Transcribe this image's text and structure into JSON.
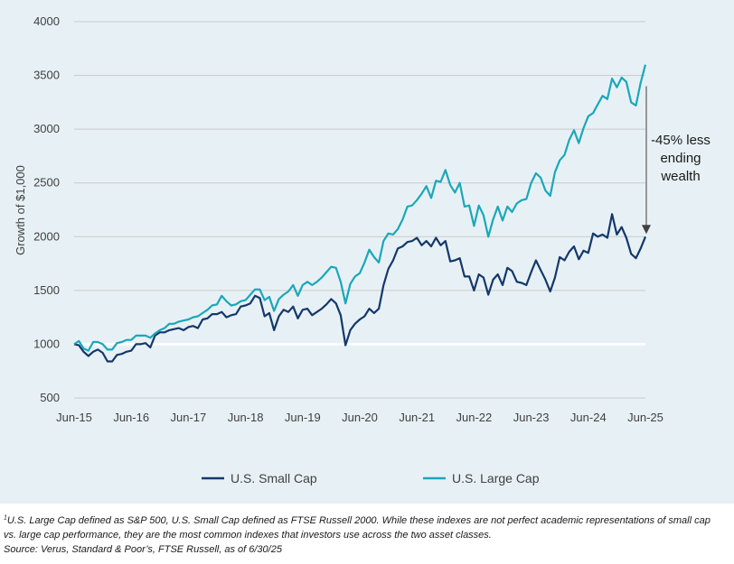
{
  "chart_data": {
    "type": "line",
    "title": "",
    "xlabel": "",
    "ylabel": "Growth of $1,000",
    "ylim": [
      500,
      4000
    ],
    "yticks": [
      500,
      1000,
      1500,
      2000,
      2500,
      3000,
      3500,
      4000
    ],
    "xlim": [
      "2015-06",
      "2025-06"
    ],
    "xticks": [
      "Jun-15",
      "Jun-16",
      "Jun-17",
      "Jun-18",
      "Jun-19",
      "Jun-20",
      "Jun-21",
      "Jun-22",
      "Jun-23",
      "Jun-24",
      "Jun-25"
    ],
    "grid": "horizontal",
    "legend_position": "bottom",
    "series": [
      {
        "name": "U.S. Small Cap",
        "color": "#14386b",
        "points": [
          [
            "2015-06",
            1000
          ],
          [
            "2015-07",
            990
          ],
          [
            "2015-08",
            930
          ],
          [
            "2015-09",
            890
          ],
          [
            "2015-10",
            930
          ],
          [
            "2015-11",
            950
          ],
          [
            "2015-12",
            920
          ],
          [
            "2016-01",
            840
          ],
          [
            "2016-02",
            840
          ],
          [
            "2016-03",
            900
          ],
          [
            "2016-04",
            910
          ],
          [
            "2016-05",
            930
          ],
          [
            "2016-06",
            940
          ],
          [
            "2016-07",
            1000
          ],
          [
            "2016-08",
            1000
          ],
          [
            "2016-09",
            1010
          ],
          [
            "2016-10",
            970
          ],
          [
            "2016-11",
            1080
          ],
          [
            "2016-12",
            1110
          ],
          [
            "2017-01",
            1110
          ],
          [
            "2017-02",
            1130
          ],
          [
            "2017-03",
            1140
          ],
          [
            "2017-04",
            1150
          ],
          [
            "2017-05",
            1130
          ],
          [
            "2017-06",
            1160
          ],
          [
            "2017-07",
            1170
          ],
          [
            "2017-08",
            1150
          ],
          [
            "2017-09",
            1230
          ],
          [
            "2017-10",
            1240
          ],
          [
            "2017-11",
            1280
          ],
          [
            "2017-12",
            1280
          ],
          [
            "2018-01",
            1300
          ],
          [
            "2018-02",
            1250
          ],
          [
            "2018-03",
            1270
          ],
          [
            "2018-04",
            1280
          ],
          [
            "2018-05",
            1350
          ],
          [
            "2018-06",
            1360
          ],
          [
            "2018-07",
            1380
          ],
          [
            "2018-08",
            1450
          ],
          [
            "2018-09",
            1430
          ],
          [
            "2018-10",
            1260
          ],
          [
            "2018-11",
            1290
          ],
          [
            "2018-12",
            1130
          ],
          [
            "2019-01",
            1260
          ],
          [
            "2019-02",
            1320
          ],
          [
            "2019-03",
            1300
          ],
          [
            "2019-04",
            1350
          ],
          [
            "2019-05",
            1240
          ],
          [
            "2019-06",
            1320
          ],
          [
            "2019-07",
            1330
          ],
          [
            "2019-08",
            1270
          ],
          [
            "2019-09",
            1300
          ],
          [
            "2019-10",
            1330
          ],
          [
            "2019-11",
            1370
          ],
          [
            "2019-12",
            1420
          ],
          [
            "2020-01",
            1380
          ],
          [
            "2020-02",
            1270
          ],
          [
            "2020-03",
            990
          ],
          [
            "2020-04",
            1130
          ],
          [
            "2020-05",
            1190
          ],
          [
            "2020-06",
            1230
          ],
          [
            "2020-07",
            1260
          ],
          [
            "2020-08",
            1330
          ],
          [
            "2020-09",
            1290
          ],
          [
            "2020-10",
            1330
          ],
          [
            "2020-11",
            1550
          ],
          [
            "2020-12",
            1700
          ],
          [
            "2021-01",
            1780
          ],
          [
            "2021-02",
            1890
          ],
          [
            "2021-03",
            1910
          ],
          [
            "2021-04",
            1950
          ],
          [
            "2021-05",
            1960
          ],
          [
            "2021-06",
            1990
          ],
          [
            "2021-07",
            1920
          ],
          [
            "2021-08",
            1960
          ],
          [
            "2021-09",
            1910
          ],
          [
            "2021-10",
            1990
          ],
          [
            "2021-11",
            1920
          ],
          [
            "2021-12",
            1960
          ],
          [
            "2022-01",
            1770
          ],
          [
            "2022-02",
            1780
          ],
          [
            "2022-03",
            1800
          ],
          [
            "2022-04",
            1630
          ],
          [
            "2022-05",
            1630
          ],
          [
            "2022-06",
            1500
          ],
          [
            "2022-07",
            1650
          ],
          [
            "2022-08",
            1620
          ],
          [
            "2022-09",
            1460
          ],
          [
            "2022-10",
            1600
          ],
          [
            "2022-11",
            1650
          ],
          [
            "2022-12",
            1550
          ],
          [
            "2023-01",
            1710
          ],
          [
            "2023-02",
            1680
          ],
          [
            "2023-03",
            1580
          ],
          [
            "2023-04",
            1570
          ],
          [
            "2023-05",
            1550
          ],
          [
            "2023-06",
            1670
          ],
          [
            "2023-07",
            1780
          ],
          [
            "2023-08",
            1690
          ],
          [
            "2023-09",
            1600
          ],
          [
            "2023-10",
            1490
          ],
          [
            "2023-11",
            1620
          ],
          [
            "2023-12",
            1810
          ],
          [
            "2024-01",
            1780
          ],
          [
            "2024-02",
            1860
          ],
          [
            "2024-03",
            1910
          ],
          [
            "2024-04",
            1790
          ],
          [
            "2024-05",
            1870
          ],
          [
            "2024-06",
            1850
          ],
          [
            "2024-07",
            2030
          ],
          [
            "2024-08",
            2000
          ],
          [
            "2024-09",
            2020
          ],
          [
            "2024-10",
            1990
          ],
          [
            "2024-11",
            2210
          ],
          [
            "2024-12",
            2020
          ],
          [
            "2025-01",
            2090
          ],
          [
            "2025-02",
            1990
          ],
          [
            "2025-03",
            1840
          ],
          [
            "2025-04",
            1800
          ],
          [
            "2025-05",
            1890
          ],
          [
            "2025-06",
            2000
          ]
        ]
      },
      {
        "name": "U.S. Large Cap",
        "color": "#1ba7b9",
        "points": [
          [
            "2015-06",
            1000
          ],
          [
            "2015-07",
            1030
          ],
          [
            "2015-08",
            960
          ],
          [
            "2015-09",
            940
          ],
          [
            "2015-10",
            1020
          ],
          [
            "2015-11",
            1020
          ],
          [
            "2015-12",
            1000
          ],
          [
            "2016-01",
            950
          ],
          [
            "2016-02",
            950
          ],
          [
            "2016-03",
            1010
          ],
          [
            "2016-04",
            1020
          ],
          [
            "2016-05",
            1040
          ],
          [
            "2016-06",
            1040
          ],
          [
            "2016-07",
            1080
          ],
          [
            "2016-08",
            1080
          ],
          [
            "2016-09",
            1080
          ],
          [
            "2016-10",
            1060
          ],
          [
            "2016-11",
            1100
          ],
          [
            "2016-12",
            1130
          ],
          [
            "2017-01",
            1150
          ],
          [
            "2017-02",
            1190
          ],
          [
            "2017-03",
            1190
          ],
          [
            "2017-04",
            1210
          ],
          [
            "2017-05",
            1220
          ],
          [
            "2017-06",
            1230
          ],
          [
            "2017-07",
            1250
          ],
          [
            "2017-08",
            1260
          ],
          [
            "2017-09",
            1290
          ],
          [
            "2017-10",
            1320
          ],
          [
            "2017-11",
            1360
          ],
          [
            "2017-12",
            1370
          ],
          [
            "2018-01",
            1450
          ],
          [
            "2018-02",
            1400
          ],
          [
            "2018-03",
            1360
          ],
          [
            "2018-04",
            1370
          ],
          [
            "2018-05",
            1400
          ],
          [
            "2018-06",
            1410
          ],
          [
            "2018-07",
            1460
          ],
          [
            "2018-08",
            1510
          ],
          [
            "2018-09",
            1510
          ],
          [
            "2018-10",
            1410
          ],
          [
            "2018-11",
            1440
          ],
          [
            "2018-12",
            1310
          ],
          [
            "2019-01",
            1420
          ],
          [
            "2019-02",
            1460
          ],
          [
            "2019-03",
            1490
          ],
          [
            "2019-04",
            1550
          ],
          [
            "2019-05",
            1450
          ],
          [
            "2019-06",
            1550
          ],
          [
            "2019-07",
            1580
          ],
          [
            "2019-08",
            1550
          ],
          [
            "2019-09",
            1580
          ],
          [
            "2019-10",
            1620
          ],
          [
            "2019-11",
            1670
          ],
          [
            "2019-12",
            1720
          ],
          [
            "2020-01",
            1710
          ],
          [
            "2020-02",
            1580
          ],
          [
            "2020-03",
            1380
          ],
          [
            "2020-04",
            1560
          ],
          [
            "2020-05",
            1630
          ],
          [
            "2020-06",
            1660
          ],
          [
            "2020-07",
            1760
          ],
          [
            "2020-08",
            1880
          ],
          [
            "2020-09",
            1810
          ],
          [
            "2020-10",
            1760
          ],
          [
            "2020-11",
            1960
          ],
          [
            "2020-12",
            2030
          ],
          [
            "2021-01",
            2020
          ],
          [
            "2021-02",
            2070
          ],
          [
            "2021-03",
            2160
          ],
          [
            "2021-04",
            2280
          ],
          [
            "2021-05",
            2290
          ],
          [
            "2021-06",
            2340
          ],
          [
            "2021-07",
            2400
          ],
          [
            "2021-08",
            2470
          ],
          [
            "2021-09",
            2360
          ],
          [
            "2021-10",
            2520
          ],
          [
            "2021-11",
            2510
          ],
          [
            "2021-12",
            2620
          ],
          [
            "2022-01",
            2480
          ],
          [
            "2022-02",
            2410
          ],
          [
            "2022-03",
            2500
          ],
          [
            "2022-04",
            2280
          ],
          [
            "2022-05",
            2290
          ],
          [
            "2022-06",
            2100
          ],
          [
            "2022-07",
            2290
          ],
          [
            "2022-08",
            2200
          ],
          [
            "2022-09",
            2000
          ],
          [
            "2022-10",
            2160
          ],
          [
            "2022-11",
            2280
          ],
          [
            "2022-12",
            2150
          ],
          [
            "2023-01",
            2280
          ],
          [
            "2023-02",
            2230
          ],
          [
            "2023-03",
            2310
          ],
          [
            "2023-04",
            2340
          ],
          [
            "2023-05",
            2350
          ],
          [
            "2023-06",
            2500
          ],
          [
            "2023-07",
            2590
          ],
          [
            "2023-08",
            2550
          ],
          [
            "2023-09",
            2430
          ],
          [
            "2023-10",
            2380
          ],
          [
            "2023-11",
            2600
          ],
          [
            "2023-12",
            2710
          ],
          [
            "2024-01",
            2760
          ],
          [
            "2024-02",
            2900
          ],
          [
            "2024-03",
            2990
          ],
          [
            "2024-04",
            2870
          ],
          [
            "2024-05",
            3010
          ],
          [
            "2024-06",
            3120
          ],
          [
            "2024-07",
            3150
          ],
          [
            "2024-08",
            3230
          ],
          [
            "2024-09",
            3310
          ],
          [
            "2024-10",
            3280
          ],
          [
            "2024-11",
            3470
          ],
          [
            "2024-12",
            3390
          ],
          [
            "2025-01",
            3480
          ],
          [
            "2025-02",
            3440
          ],
          [
            "2025-03",
            3250
          ],
          [
            "2025-04",
            3220
          ],
          [
            "2025-05",
            3430
          ],
          [
            "2025-06",
            3600
          ]
        ]
      }
    ],
    "annotation": {
      "lines": [
        "-45% less",
        "ending",
        "wealth"
      ],
      "arrow_from": 3400,
      "arrow_to": 2000,
      "x": "2025-06"
    }
  },
  "footnote": {
    "marker": "1",
    "line1": "U.S. Large Cap defined as S&P 500, U.S. Small Cap defined as FTSE Russell 2000. While these indexes are not perfect academic representations of small cap",
    "line2": "vs. large cap performance, they are the most common indexes that investors use across the two asset classes.",
    "source": "Source: Verus, Standard & Poor’s, FTSE Russell, as of 6/30/25"
  },
  "colors": {
    "panel_background": "#e7f1f5",
    "gridline": "#c9c9c9",
    "baseline_1000": "#ffffff",
    "small_cap": "#14386b",
    "large_cap": "#1ba7b9",
    "arrow": "#404040"
  }
}
